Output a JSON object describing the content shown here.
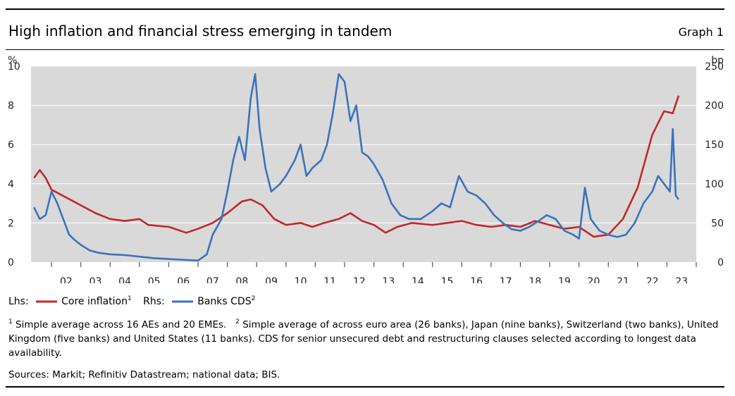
{
  "header": {
    "title": "High inflation and financial stress emerging in tandem",
    "graph_label": "Graph 1"
  },
  "footnotes": {
    "n1_mark": "1",
    "n1_text": "Simple average across 16 AEs and 20 EMEs.",
    "n2_mark": "2",
    "n2_text": "Simple average of across euro area (26 banks), Japan (nine banks), Switzerland (two banks), United Kingdom (five banks) and United States (11 banks). CDS for senior unsecured debt and restructuring clauses selected according to longest data availability.",
    "sources": "Sources: Markit; Refinitiv Datastream; national data; BIS."
  },
  "colors": {
    "inflation": "#c0282d",
    "cds": "#3b73b9",
    "plot_bg": "#d9d9d9",
    "grid": "#ffffff"
  },
  "chart_data": {
    "type": "line",
    "title": "High inflation and financial stress emerging in tandem",
    "left_axis": {
      "unit": "%",
      "range": [
        0,
        10
      ],
      "ticks": [
        0,
        2,
        4,
        6,
        8,
        10
      ]
    },
    "right_axis": {
      "unit": "bp",
      "range": [
        0,
        250
      ],
      "ticks": [
        0,
        50,
        100,
        150,
        200,
        250
      ]
    },
    "x_axis": {
      "range": [
        2001.3,
        2024.0
      ],
      "tick_labels": [
        "02",
        "03",
        "04",
        "05",
        "06",
        "07",
        "08",
        "09",
        "10",
        "11",
        "12",
        "13",
        "14",
        "15",
        "16",
        "17",
        "18",
        "19",
        "20",
        "21",
        "22",
        "23"
      ]
    },
    "legend": {
      "lhs_prefix": "Lhs:",
      "rhs_prefix": "Rhs:",
      "position": "bottom-left"
    },
    "series": [
      {
        "name": "Core inflation",
        "footnote": "1",
        "axis": "left",
        "points": [
          [
            2001.4,
            4.3
          ],
          [
            2001.6,
            4.7
          ],
          [
            2001.8,
            4.3
          ],
          [
            2002.0,
            3.7
          ],
          [
            2002.5,
            3.3
          ],
          [
            2003.0,
            2.9
          ],
          [
            2003.5,
            2.5
          ],
          [
            2004.0,
            2.2
          ],
          [
            2004.5,
            2.1
          ],
          [
            2005.0,
            2.2
          ],
          [
            2005.3,
            1.9
          ],
          [
            2006.0,
            1.8
          ],
          [
            2006.6,
            1.5
          ],
          [
            2007.0,
            1.7
          ],
          [
            2007.5,
            2.0
          ],
          [
            2008.0,
            2.5
          ],
          [
            2008.5,
            3.1
          ],
          [
            2008.8,
            3.2
          ],
          [
            2009.2,
            2.9
          ],
          [
            2009.6,
            2.2
          ],
          [
            2010.0,
            1.9
          ],
          [
            2010.5,
            2.0
          ],
          [
            2010.9,
            1.8
          ],
          [
            2011.3,
            2.0
          ],
          [
            2011.8,
            2.2
          ],
          [
            2012.2,
            2.5
          ],
          [
            2012.6,
            2.1
          ],
          [
            2013.0,
            1.9
          ],
          [
            2013.4,
            1.5
          ],
          [
            2013.8,
            1.8
          ],
          [
            2014.3,
            2.0
          ],
          [
            2015.0,
            1.9
          ],
          [
            2015.5,
            2.0
          ],
          [
            2016.0,
            2.1
          ],
          [
            2016.5,
            1.9
          ],
          [
            2017.0,
            1.8
          ],
          [
            2017.5,
            1.9
          ],
          [
            2018.0,
            1.8
          ],
          [
            2018.5,
            2.1
          ],
          [
            2019.0,
            1.9
          ],
          [
            2019.5,
            1.7
          ],
          [
            2020.0,
            1.8
          ],
          [
            2020.5,
            1.3
          ],
          [
            2021.0,
            1.4
          ],
          [
            2021.5,
            2.2
          ],
          [
            2022.0,
            3.8
          ],
          [
            2022.5,
            6.5
          ],
          [
            2022.9,
            7.7
          ],
          [
            2023.2,
            7.6
          ],
          [
            2023.4,
            8.5
          ]
        ]
      },
      {
        "name": "Banks CDS",
        "footnote": "2",
        "axis": "right",
        "points": [
          [
            2001.4,
            70
          ],
          [
            2001.6,
            55
          ],
          [
            2001.8,
            60
          ],
          [
            2002.0,
            90
          ],
          [
            2002.2,
            75
          ],
          [
            2002.4,
            55
          ],
          [
            2002.6,
            35
          ],
          [
            2002.8,
            28
          ],
          [
            2003.0,
            22
          ],
          [
            2003.3,
            15
          ],
          [
            2003.6,
            12
          ],
          [
            2004.0,
            10
          ],
          [
            2004.5,
            9
          ],
          [
            2005.0,
            7
          ],
          [
            2005.5,
            5
          ],
          [
            2006.0,
            4
          ],
          [
            2006.5,
            3
          ],
          [
            2007.0,
            2
          ],
          [
            2007.3,
            10
          ],
          [
            2007.5,
            35
          ],
          [
            2007.8,
            55
          ],
          [
            2008.0,
            90
          ],
          [
            2008.2,
            130
          ],
          [
            2008.4,
            160
          ],
          [
            2008.6,
            130
          ],
          [
            2008.8,
            210
          ],
          [
            2008.95,
            240
          ],
          [
            2009.1,
            170
          ],
          [
            2009.3,
            120
          ],
          [
            2009.5,
            90
          ],
          [
            2009.8,
            100
          ],
          [
            2010.0,
            110
          ],
          [
            2010.3,
            130
          ],
          [
            2010.5,
            150
          ],
          [
            2010.7,
            110
          ],
          [
            2010.9,
            120
          ],
          [
            2011.2,
            130
          ],
          [
            2011.4,
            150
          ],
          [
            2011.6,
            190
          ],
          [
            2011.8,
            240
          ],
          [
            2012.0,
            230
          ],
          [
            2012.2,
            180
          ],
          [
            2012.4,
            200
          ],
          [
            2012.6,
            140
          ],
          [
            2012.8,
            135
          ],
          [
            2013.0,
            125
          ],
          [
            2013.3,
            105
          ],
          [
            2013.6,
            75
          ],
          [
            2013.9,
            60
          ],
          [
            2014.2,
            55
          ],
          [
            2014.6,
            55
          ],
          [
            2015.0,
            65
          ],
          [
            2015.3,
            75
          ],
          [
            2015.6,
            70
          ],
          [
            2015.9,
            110
          ],
          [
            2016.2,
            90
          ],
          [
            2016.5,
            85
          ],
          [
            2016.8,
            75
          ],
          [
            2017.1,
            60
          ],
          [
            2017.4,
            50
          ],
          [
            2017.7,
            42
          ],
          [
            2018.0,
            40
          ],
          [
            2018.3,
            45
          ],
          [
            2018.6,
            52
          ],
          [
            2018.9,
            60
          ],
          [
            2019.2,
            55
          ],
          [
            2019.5,
            40
          ],
          [
            2019.8,
            35
          ],
          [
            2020.0,
            30
          ],
          [
            2020.2,
            95
          ],
          [
            2020.4,
            55
          ],
          [
            2020.7,
            40
          ],
          [
            2021.0,
            35
          ],
          [
            2021.3,
            32
          ],
          [
            2021.6,
            35
          ],
          [
            2021.9,
            50
          ],
          [
            2022.2,
            75
          ],
          [
            2022.5,
            90
          ],
          [
            2022.7,
            110
          ],
          [
            2022.9,
            100
          ],
          [
            2023.1,
            90
          ],
          [
            2023.2,
            170
          ],
          [
            2023.3,
            85
          ],
          [
            2023.4,
            80
          ]
        ]
      }
    ]
  }
}
